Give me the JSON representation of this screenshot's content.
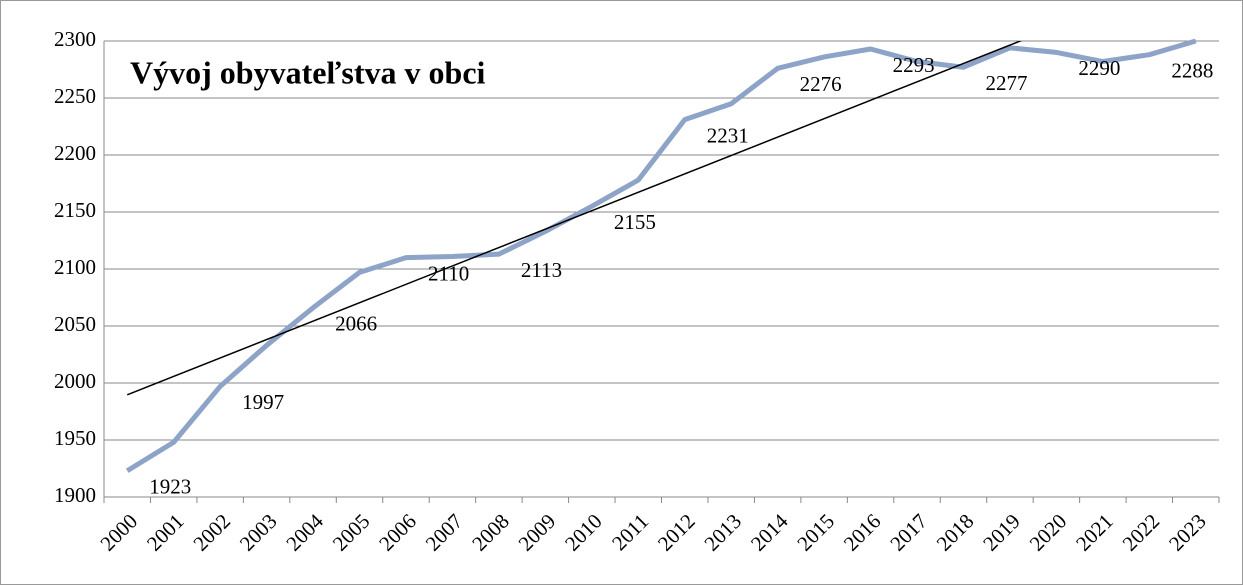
{
  "chart_data": {
    "type": "line",
    "title": "Vývoj obyvateľstva v obci",
    "categories": [
      "2000",
      "2001",
      "2002",
      "2003",
      "2004",
      "2005",
      "2006",
      "2007",
      "2008",
      "2009",
      "2010",
      "2011",
      "2012",
      "2013",
      "2014",
      "2015",
      "2016",
      "2017",
      "2018",
      "2019",
      "2020",
      "2021",
      "2022",
      "2023"
    ],
    "values": [
      1923,
      1948,
      1997,
      2033,
      2066,
      2097,
      2110,
      2111,
      2113,
      2133,
      2155,
      2178,
      2231,
      2245,
      2276,
      2286,
      2293,
      2282,
      2277,
      2294,
      2290,
      2282,
      2288,
      2300
    ],
    "value_labels": [
      "1923",
      null,
      "1997",
      null,
      "2066",
      null,
      "2110",
      null,
      "2113",
      null,
      "2155",
      null,
      "2231",
      null,
      "2276",
      null,
      "2293",
      null,
      "2277",
      null,
      "2290",
      null,
      "2288",
      null
    ],
    "color": "#8da3c8",
    "trendline": "linear",
    "trendline_color": "#000000",
    "ylim": [
      1900,
      2300
    ],
    "yticks": [
      1900,
      1950,
      2000,
      2050,
      2100,
      2150,
      2200,
      2250,
      2300
    ],
    "grid": true
  }
}
